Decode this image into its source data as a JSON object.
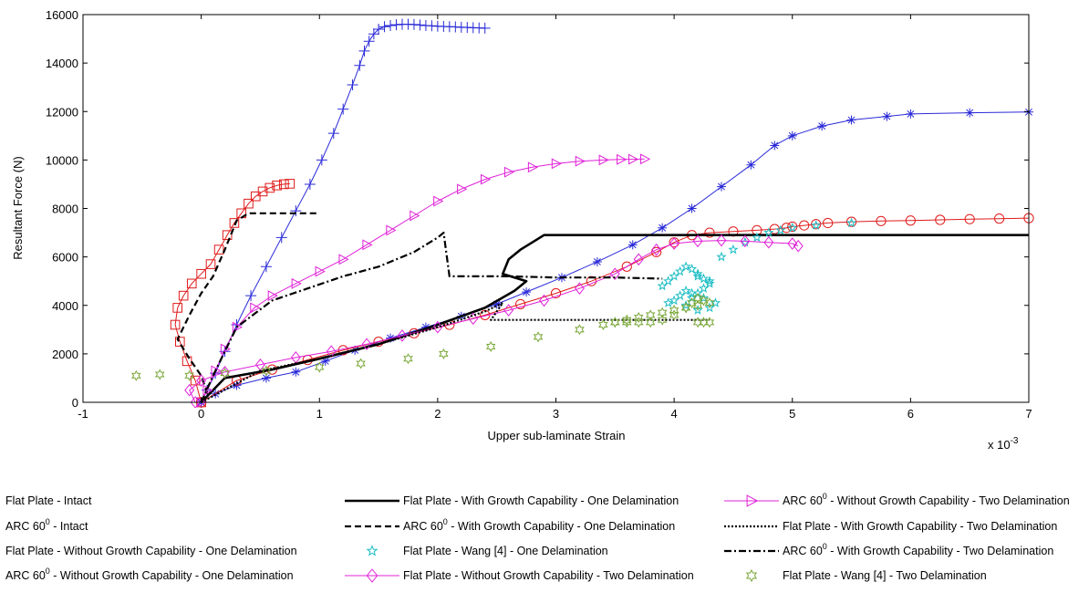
{
  "chart_data": {
    "type": "line",
    "xlabel": "Upper sub-laminate Strain",
    "ylabel": "Resultant Force (N)",
    "x_multiplier": "x 10",
    "x_multiplier_exp": "-3",
    "xlim": [
      -1,
      7
    ],
    "ylim": [
      0,
      16000
    ],
    "xticks": [
      "-1",
      "0",
      "1",
      "2",
      "3",
      "4",
      "5",
      "6",
      "7"
    ],
    "yticks": [
      "0",
      "2000",
      "4000",
      "6000",
      "8000",
      "10000",
      "12000",
      "14000",
      "16000"
    ],
    "grid": false,
    "legend_position": "bottom",
    "series": [
      {
        "name": "Flat Plate - Intact",
        "name_parts": [
          "Flat Plate - Intact"
        ],
        "color": "#2a2ad8",
        "marker": "asterisk",
        "line": "solid",
        "line_width": 1,
        "x": [
          0,
          0.12,
          0.3,
          0.55,
          0.8,
          1.05,
          1.3,
          1.6,
          1.9,
          2.2,
          2.5,
          2.75,
          3.05,
          3.35,
          3.65,
          3.9,
          4.15,
          4.4,
          4.65,
          4.85,
          5.0,
          5.25,
          5.5,
          5.8,
          6.0,
          6.5,
          7.0
        ],
        "y": [
          0,
          350,
          700,
          1000,
          1250,
          1700,
          2150,
          2650,
          3100,
          3550,
          4050,
          4550,
          5150,
          5800,
          6500,
          7200,
          8000,
          8900,
          9800,
          10600,
          11000,
          11400,
          11650,
          11800,
          11900,
          11950,
          11980
        ]
      },
      {
        "name": "ARC 60 - Intact",
        "name_parts": [
          "ARC 60",
          "0",
          " - Intact"
        ],
        "color": "#2a2ad8",
        "marker": "plus",
        "line": "solid",
        "line_width": 1,
        "x": [
          0,
          0.05,
          0.12,
          0.2,
          0.3,
          0.42,
          0.55,
          0.68,
          0.8,
          0.92,
          1.02,
          1.12,
          1.2,
          1.28,
          1.34,
          1.38,
          1.42,
          1.46,
          1.5,
          1.55,
          1.6,
          1.65,
          1.7,
          1.75,
          1.8,
          1.85,
          1.9,
          1.95,
          2.0,
          2.05,
          2.1,
          2.15,
          2.2,
          2.25,
          2.3,
          2.35,
          2.4
        ],
        "y": [
          0,
          500,
          1200,
          2100,
          3200,
          4400,
          5600,
          6800,
          7900,
          9000,
          10000,
          11100,
          12100,
          13100,
          13900,
          14500,
          14900,
          15200,
          15400,
          15500,
          15550,
          15580,
          15600,
          15600,
          15590,
          15570,
          15550,
          15540,
          15520,
          15510,
          15500,
          15490,
          15480,
          15470,
          15460,
          15450,
          15440
        ]
      },
      {
        "name": "Flat Plate - Without Growth Capability - One Delamination",
        "name_parts": [
          "Flat Plate - Without Growth Capability - One Delamination"
        ],
        "color": "#e01a1a",
        "marker": "circle",
        "line": "solid",
        "line_width": 1,
        "x": [
          0,
          0.3,
          0.6,
          0.9,
          1.2,
          1.5,
          1.8,
          2.1,
          2.4,
          2.7,
          3.0,
          3.3,
          3.6,
          3.85,
          4.0,
          4.15,
          4.3,
          4.5,
          4.7,
          4.85,
          4.95,
          5.0,
          5.1,
          5.2,
          5.3,
          5.5,
          5.75,
          6.0,
          6.25,
          6.5,
          6.75,
          7.0
        ],
        "y": [
          0,
          900,
          1350,
          1750,
          2150,
          2500,
          2850,
          3200,
          3600,
          4050,
          4500,
          5000,
          5600,
          6200,
          6600,
          6900,
          7000,
          7050,
          7100,
          7150,
          7200,
          7250,
          7300,
          7350,
          7400,
          7450,
          7480,
          7500,
          7530,
          7560,
          7580,
          7600
        ]
      },
      {
        "name": "ARC 60 - Without Growth Capability - One Delamination",
        "name_parts": [
          "ARC 60",
          "0",
          " - Without Growth Capability - One Delamination"
        ],
        "color": "#e01a1a",
        "marker": "square",
        "line": "solid",
        "line_width": 1,
        "x": [
          0,
          -0.05,
          -0.12,
          -0.18,
          -0.22,
          -0.2,
          -0.15,
          -0.08,
          0.0,
          0.08,
          0.15,
          0.22,
          0.28,
          0.34,
          0.4,
          0.46,
          0.52,
          0.58,
          0.64,
          0.7,
          0.75
        ],
        "y": [
          0,
          900,
          1700,
          2500,
          3200,
          3900,
          4400,
          4900,
          5300,
          5700,
          6300,
          6900,
          7400,
          7800,
          8200,
          8500,
          8700,
          8850,
          8950,
          9000,
          9020
        ]
      },
      {
        "name": "Flat Plate - With Growth Capability - One Delamination",
        "name_parts": [
          "Flat Plate - With Growth Capability - One Delamination"
        ],
        "color": "#000000",
        "marker": "none",
        "line": "solid",
        "line_width": 2.6,
        "x": [
          0,
          0.2,
          0.6,
          1.0,
          1.5,
          2.0,
          2.4,
          2.65,
          2.75,
          2.55,
          2.6,
          2.7,
          2.8,
          2.9,
          3.1,
          3.5,
          4.0,
          5.0,
          6.0,
          7.0
        ],
        "y": [
          0,
          1000,
          1350,
          1800,
          2400,
          3200,
          3900,
          4600,
          5000,
          5300,
          5900,
          6300,
          6600,
          6900,
          6900,
          6900,
          6900,
          6900,
          6900,
          6900
        ]
      },
      {
        "name": "ARC 60 - With Growth Capability - One Delamination",
        "name_parts": [
          "ARC 60",
          "0",
          " - With Growth Capability - One Delamination"
        ],
        "color": "#000000",
        "marker": "none",
        "line": "dashed",
        "line_width": 2.2,
        "x": [
          0,
          0.05,
          0.0,
          -0.1,
          -0.2,
          -0.1,
          0.0,
          0.1,
          0.2,
          0.3,
          0.4,
          0.6,
          0.8,
          1.0
        ],
        "y": [
          0,
          400,
          1100,
          1800,
          2600,
          3600,
          4500,
          5200,
          6300,
          7500,
          7800,
          7800,
          7800,
          7800
        ]
      },
      {
        "name": "Flat Plate - Wang [4] - One Delamination",
        "name_parts": [
          "Flat Plate - Wang [4] - One Delamination"
        ],
        "color": "#1abdc4",
        "marker": "star",
        "line": "none",
        "line_width": 0,
        "x": [
          3.9,
          3.95,
          4.0,
          4.05,
          4.1,
          4.15,
          4.2,
          4.25,
          4.3,
          4.25,
          4.2,
          4.15,
          4.1,
          4.05,
          4.0,
          3.95,
          4.1,
          4.2,
          4.3,
          4.35,
          4.25,
          4.15,
          4.3,
          4.2,
          4.4,
          4.5,
          4.6,
          4.7,
          4.8,
          4.9,
          5.0,
          5.2,
          5.5
        ],
        "y": [
          4800,
          5000,
          5200,
          5400,
          5600,
          5500,
          5300,
          5100,
          4900,
          4700,
          4500,
          4300,
          4600,
          4400,
          4200,
          4100,
          4000,
          3800,
          3900,
          4100,
          4300,
          4500,
          5000,
          5200,
          6000,
          6300,
          6600,
          6800,
          7000,
          7100,
          7200,
          7300,
          7400
        ]
      },
      {
        "name": "Flat Plate - Without Growth Capability - Two Delamination",
        "name_parts": [
          "Flat Plate - Without Growth Capability - Two Delamination"
        ],
        "color": "#e020d8",
        "marker": "diamond",
        "line": "solid",
        "line_width": 1,
        "x": [
          -0.05,
          -0.1,
          0.0,
          0.2,
          0.5,
          0.8,
          1.1,
          1.4,
          1.7,
          2.0,
          2.3,
          2.6,
          2.9,
          3.2,
          3.5,
          3.7,
          3.85,
          4.0,
          4.2,
          4.4,
          4.6,
          4.8,
          5.0,
          5.05
        ],
        "y": [
          0,
          500,
          900,
          1250,
          1550,
          1850,
          2100,
          2400,
          2750,
          3100,
          3450,
          3800,
          4200,
          4700,
          5300,
          5900,
          6300,
          6550,
          6650,
          6680,
          6650,
          6600,
          6550,
          6450
        ]
      },
      {
        "name": "ARC 60 - Without Growth Capability - Two Delamination",
        "name_parts": [
          "ARC 60",
          "0",
          " - Without Growth Capability - Two Delamination"
        ],
        "color": "#e020d8",
        "marker": "triangle-right",
        "line": "solid",
        "line_width": 1,
        "x": [
          0,
          0.05,
          0.12,
          0.2,
          0.3,
          0.45,
          0.6,
          0.8,
          1.0,
          1.2,
          1.4,
          1.6,
          1.8,
          2.0,
          2.2,
          2.4,
          2.6,
          2.8,
          3.0,
          3.2,
          3.4,
          3.55,
          3.65,
          3.75
        ],
        "y": [
          0,
          500,
          1300,
          2200,
          3100,
          3900,
          4400,
          4900,
          5400,
          5900,
          6500,
          7100,
          7700,
          8300,
          8800,
          9200,
          9500,
          9700,
          9850,
          9950,
          10000,
          10020,
          10030,
          10040
        ]
      },
      {
        "name": "Flat Plate - With Growth Capability - Two Delamination",
        "name_parts": [
          "Flat Plate - With Growth Capability - Two Delamination"
        ],
        "color": "#000000",
        "marker": "none",
        "line": "dotted",
        "line_width": 2.2,
        "x": [
          0,
          0.5,
          1.0,
          1.5,
          2.0,
          2.4,
          2.55,
          2.45,
          2.5,
          3.0,
          3.5,
          4.0,
          4.3
        ],
        "y": [
          0,
          1300,
          1800,
          2400,
          3100,
          3750,
          4100,
          3400,
          3400,
          3400,
          3400,
          3400,
          3400
        ]
      },
      {
        "name": "ARC 60 - With Growth Capability - Two Delamination",
        "name_parts": [
          "ARC 60",
          "0",
          " - With Growth Capability - Two Delamination"
        ],
        "color": "#000000",
        "marker": "none",
        "line": "dashdot",
        "line_width": 2.2,
        "x": [
          0,
          0.1,
          0.3,
          0.6,
          0.9,
          1.2,
          1.5,
          1.8,
          2.0,
          2.05,
          2.1,
          2.3,
          2.6,
          3.0,
          3.5,
          3.9
        ],
        "y": [
          0,
          1100,
          3100,
          4200,
          4700,
          5200,
          5600,
          6200,
          6800,
          7000,
          5200,
          5200,
          5200,
          5150,
          5150,
          5100
        ]
      },
      {
        "name": "Flat Plate - Wang [4] - Two Delamination",
        "name_parts": [
          "Flat Plate - Wang [4] - Two Delamination"
        ],
        "color": "#7ba83a",
        "marker": "hexagram",
        "line": "none",
        "line_width": 0,
        "x": [
          -0.55,
          -0.35,
          -0.1,
          0.2,
          0.55,
          1.0,
          1.35,
          1.75,
          2.05,
          2.45,
          2.85,
          3.2,
          3.4,
          3.5,
          3.6,
          3.7,
          3.8,
          3.9,
          4.0,
          4.1,
          4.2,
          4.3,
          4.25,
          4.2,
          4.15,
          4.1,
          4.0,
          3.9,
          3.8,
          3.7,
          3.6,
          3.5,
          4.3,
          4.25,
          4.2
        ],
        "y": [
          1100,
          1150,
          1100,
          1200,
          1300,
          1450,
          1600,
          1800,
          2000,
          2300,
          2700,
          3000,
          3200,
          3300,
          3400,
          3500,
          3600,
          3700,
          3800,
          3900,
          4000,
          4100,
          4200,
          4300,
          4100,
          3900,
          3600,
          3400,
          3300,
          3300,
          3300,
          3300,
          3300,
          3300,
          3300
        ]
      }
    ],
    "legend_columns": [
      [
        0,
        1,
        2,
        3
      ],
      [
        4,
        5,
        6,
        7
      ],
      [
        8,
        9,
        10,
        11
      ]
    ]
  }
}
